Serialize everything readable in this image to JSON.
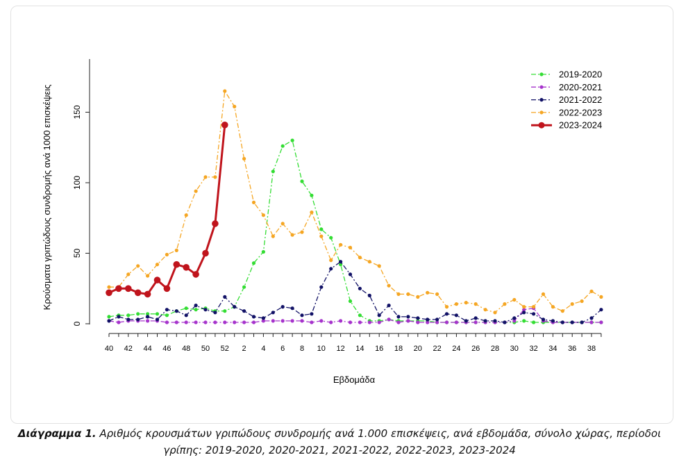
{
  "chart_data": {
    "type": "line",
    "xlabel": "Εβδομάδα",
    "ylabel": "Κρούσματα γριπώδους συνδρομής ανά 1000 επισκέψεις",
    "ylim": [
      0,
      180
    ],
    "yticks": [
      0,
      50,
      100,
      150
    ],
    "week_order": [
      40,
      41,
      42,
      43,
      44,
      45,
      46,
      47,
      48,
      49,
      50,
      51,
      52,
      1,
      2,
      3,
      4,
      5,
      6,
      7,
      8,
      9,
      10,
      11,
      12,
      13,
      14,
      15,
      16,
      17,
      18,
      19,
      20,
      21,
      22,
      23,
      24,
      25,
      26,
      27,
      28,
      29,
      30,
      31,
      32,
      33,
      34,
      35,
      36,
      37,
      38,
      39
    ],
    "x_tick_labels": [
      "40",
      "42",
      "44",
      "46",
      "48",
      "50",
      "52",
      "2",
      "4",
      "6",
      "8",
      "10",
      "12",
      "14",
      "16",
      "18",
      "20",
      "22",
      "24",
      "26",
      "28",
      "30",
      "32",
      "34",
      "36",
      "38"
    ],
    "legend_position": "top-right",
    "series": [
      {
        "name": "2019-2020",
        "color": "#33dd33",
        "dash": "dotdash",
        "thick": false,
        "values": [
          5,
          6,
          6,
          7,
          7,
          7,
          6,
          9,
          11,
          10,
          11,
          9,
          9,
          12,
          26,
          43,
          51,
          108,
          126,
          130,
          101,
          91,
          67,
          61,
          42,
          16,
          6,
          2,
          2,
          3,
          2,
          2,
          2,
          2,
          1,
          1,
          1,
          1,
          1,
          1,
          1,
          1,
          1,
          2,
          1,
          1,
          1,
          1,
          1,
          1,
          1,
          1
        ]
      },
      {
        "name": "2020-2021",
        "color": "#a633cc",
        "dash": "dotdash",
        "thick": false,
        "values": [
          2,
          1,
          2,
          2,
          2,
          2,
          1,
          1,
          1,
          1,
          1,
          1,
          1,
          1,
          1,
          1,
          2,
          2,
          2,
          2,
          2,
          1,
          2,
          1,
          2,
          1,
          1,
          1,
          1,
          3,
          1,
          2,
          1,
          1,
          1,
          1,
          1,
          1,
          1,
          1,
          1,
          1,
          2,
          10,
          11,
          2,
          1,
          1,
          1,
          1,
          1,
          1
        ]
      },
      {
        "name": "2021-2022",
        "color": "#111166",
        "dash": "dotdash",
        "thick": false,
        "values": [
          2,
          5,
          3,
          3,
          5,
          3,
          10,
          9,
          6,
          13,
          10,
          8,
          19,
          12,
          9,
          5,
          4,
          8,
          12,
          11,
          6,
          7,
          26,
          39,
          44,
          35,
          25,
          20,
          6,
          13,
          5,
          5,
          4,
          3,
          3,
          7,
          6,
          2,
          4,
          2,
          2,
          1,
          4,
          8,
          7,
          3,
          2,
          1,
          1,
          1,
          4,
          10
        ]
      },
      {
        "name": "2022-2023",
        "color": "#f5a623",
        "dash": "dotdash",
        "thick": false,
        "values": [
          26,
          26,
          35,
          41,
          34,
          42,
          49,
          52,
          77,
          94,
          104,
          104,
          165,
          154,
          117,
          86,
          77,
          62,
          71,
          63,
          65,
          79,
          62,
          45,
          56,
          54,
          47,
          44,
          41,
          27,
          21,
          21,
          19,
          22,
          21,
          12,
          14,
          15,
          14,
          10,
          8,
          14,
          17,
          12,
          12,
          21,
          12,
          9,
          14,
          16,
          23,
          19
        ]
      },
      {
        "name": "2023-2024",
        "color": "#c0141c",
        "dash": "solid",
        "thick": true,
        "values": [
          22,
          25,
          25,
          22,
          21,
          31,
          25,
          42,
          40,
          35,
          50,
          71,
          141
        ]
      }
    ]
  },
  "caption": {
    "lead": "Διάγραμμα 1.",
    "text": " Αριθμός κρουσμάτων γριπώδους συνδρομής ανά 1.000 επισκέψεις, ανά εβδομάδα, σύνολο χώρας, περίοδοι γρίπης: 2019-2020, 2020-2021, 2021-2022, 2022-2023, 2023-2024"
  }
}
